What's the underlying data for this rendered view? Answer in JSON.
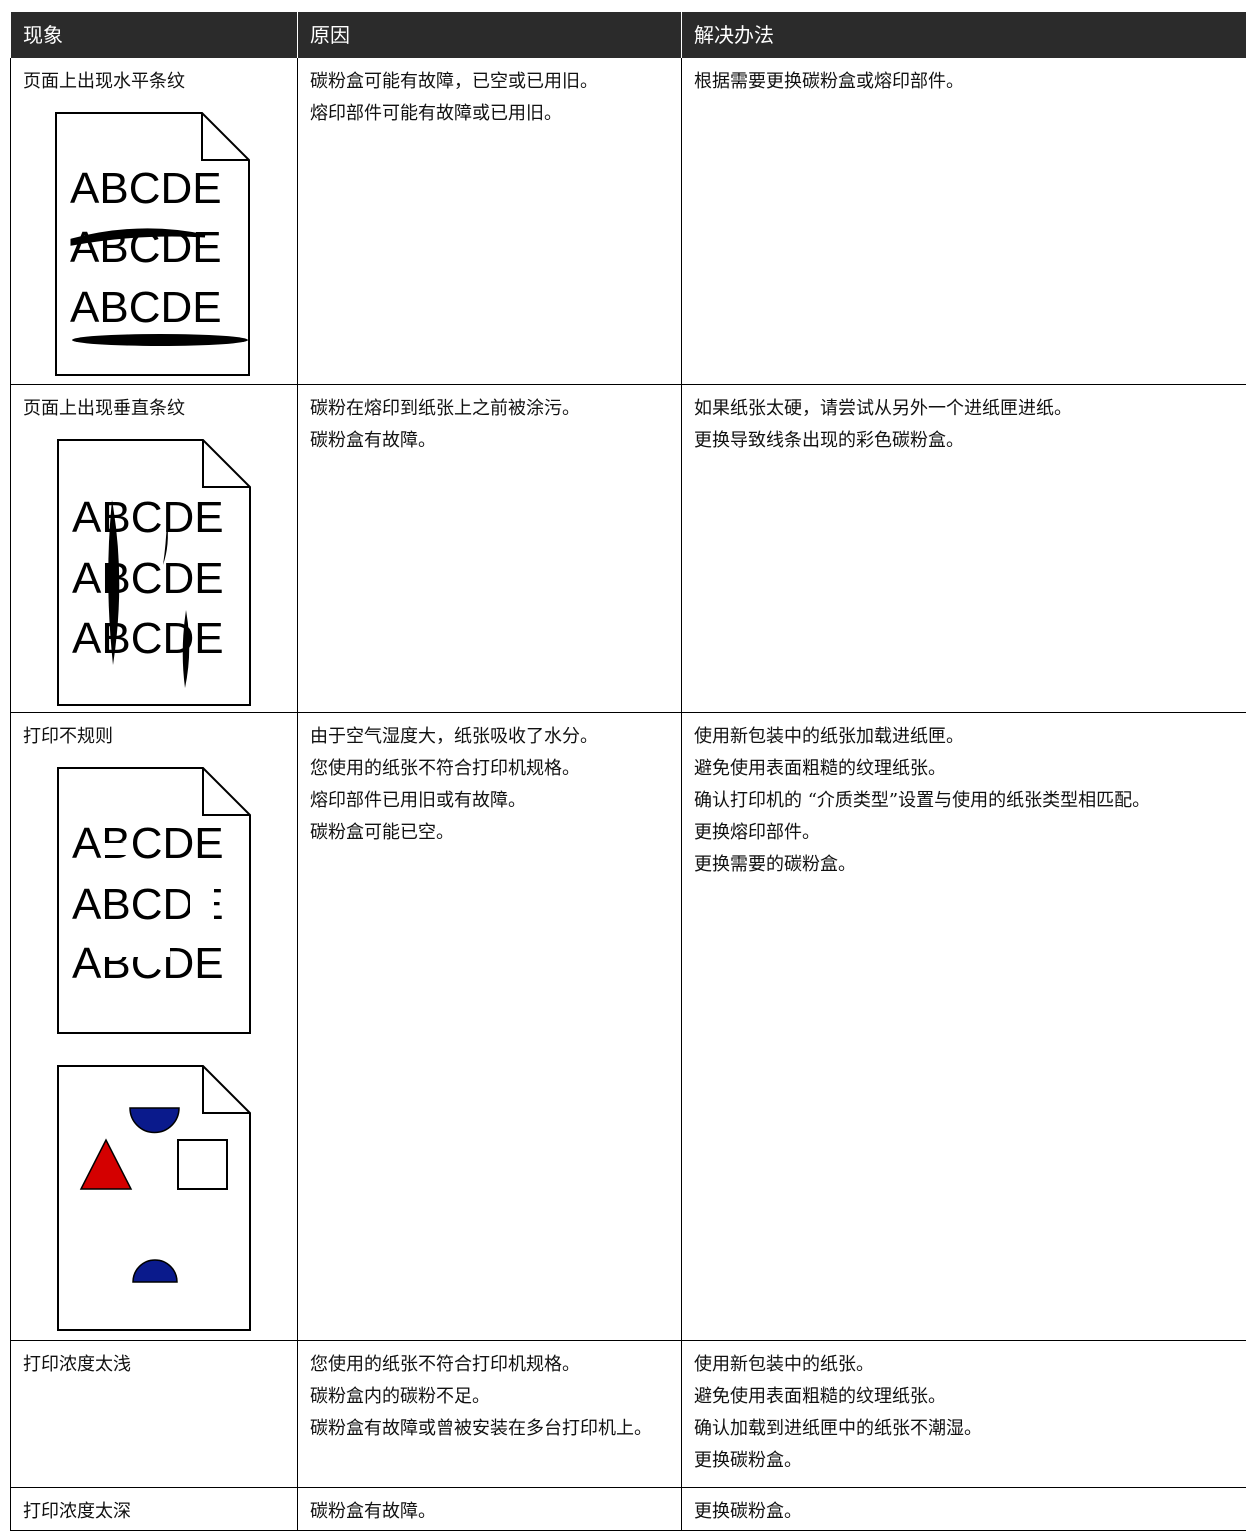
{
  "table": {
    "header": [
      "现象",
      "原因",
      "解决办法"
    ],
    "rows": [
      {
        "symptom": "页面上出现水平条纹",
        "illustration": [
          "ABCDE",
          "ABCDE",
          "ABCDE"
        ],
        "causes": [
          "碳粉盒可能有故障，已空或已用旧。",
          "熔印部件可能有故障或已用旧。"
        ],
        "solutions": [
          "根据需要更换碳粉盒或熔印部件。"
        ]
      },
      {
        "symptom": "页面上出现垂直条纹",
        "illustration": [
          "ABCDE",
          "ABCDE",
          "ABCDE"
        ],
        "causes": [
          "碳粉在熔印到纸张上之前被涂污。",
          "碳粉盒有故障。"
        ],
        "solutions": [
          "如果纸张太硬，请尝试从另外一个进纸匣进纸。",
          "更换导致线条出现的彩色碳粉盒。"
        ]
      },
      {
        "symptom": "打印不规则",
        "illustration": [
          "ABCDE",
          "ABCDE",
          "ABCDE"
        ],
        "causes": [
          "由于空气湿度大，纸张吸收了水分。",
          "您使用的纸张不符合打印机规格。",
          "熔印部件已用旧或有故障。",
          "碳粉盒可能已空。"
        ],
        "solutions": [
          "使用新包装中的纸张加载进纸匣。",
          "避免使用表面粗糙的纹理纸张。",
          "确认打印机的 “介质类型”设置与使用的纸张类型相匹配。",
          "更换熔印部件。",
          "更换需要的碳粉盒。"
        ]
      },
      {
        "symptom": "打印浓度太浅",
        "causes": [
          "您使用的纸张不符合打印机规格。",
          "碳粉盒内的碳粉不足。",
          "碳粉盒有故障或曾被安装在多台打印机上。"
        ],
        "solutions": [
          "使用新包装中的纸张。",
          "避免使用表面粗糙的纹理纸张。",
          "确认加载到进纸匣中的纸张不潮湿。",
          "更换碳粉盒。"
        ]
      },
      {
        "symptom": "打印浓度太深",
        "causes": [
          "碳粉盒有故障。"
        ],
        "solutions": [
          "更换碳粉盒。"
        ]
      }
    ]
  }
}
